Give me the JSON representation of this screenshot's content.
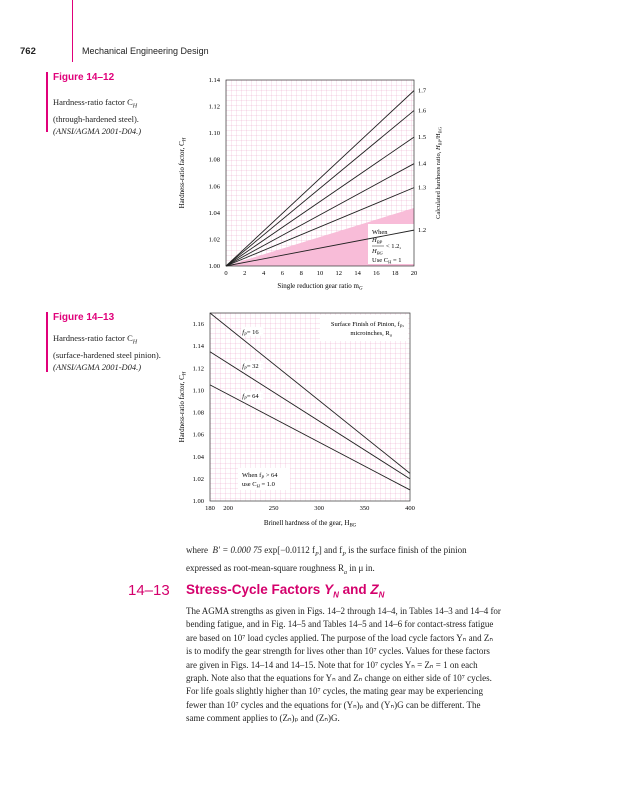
{
  "header": {
    "page_number": "762",
    "running_title": "Mechanical Engineering Design"
  },
  "figure12": {
    "label": "Figure 14–12",
    "caption": [
      "Hardness-ratio factor C",
      "(through-hardened steel).",
      "(ANSI/AGMA 2001-D04.)"
    ],
    "caption_sub": "H",
    "inset": {
      "line1": "When",
      "line2": "< 1.2,",
      "line3": "Use C",
      "line3_end": " = 1"
    },
    "right_label": "Calculated hardness ratio,"
  },
  "figure13": {
    "label": "Figure 14–13",
    "caption": [
      "Hardness-ratio factor C",
      "(surface-hardened steel pinion).",
      "(ANSI/AGMA 2001-D04.)"
    ],
    "caption_sub": "H",
    "legend_title": "Surface Finish of Pinion, f",
    "legend_title2": "microinches, R",
    "note1": "When f",
    "note1_end": " > 64",
    "note2": "use C",
    "note2_end": " = 1.0"
  },
  "chart_data": [
    {
      "type": "line",
      "x": [
        0,
        20
      ],
      "xlim": [
        0,
        20
      ],
      "ylim": [
        1.0,
        1.14
      ],
      "xticks": [
        "0",
        "2",
        "4",
        "6",
        "8",
        "10",
        "12",
        "14",
        "16",
        "18",
        "20"
      ],
      "yticks": [
        "1.00",
        "1.02",
        "1.04",
        "1.06",
        "1.08",
        "1.10",
        "1.12",
        "1.14"
      ],
      "xlabel": "Single reduction gear ratio m",
      "ylabel": "Hardness-ratio factor, C",
      "series": [
        {
          "name": "1.2",
          "values": [
            1.0,
            1.027
          ]
        },
        {
          "name": "1.3",
          "values": [
            1.0,
            1.059
          ]
        },
        {
          "name": "1.4",
          "values": [
            1.0,
            1.077
          ]
        },
        {
          "name": "1.5",
          "values": [
            1.0,
            1.097
          ]
        },
        {
          "name": "1.6",
          "values": [
            1.0,
            1.117
          ]
        },
        {
          "name": "1.7",
          "values": [
            1.0,
            1.132
          ]
        }
      ]
    },
    {
      "type": "line",
      "xlim": [
        180,
        400
      ],
      "ylim": [
        1.0,
        1.17
      ],
      "xticks": [
        "180",
        "200",
        "250",
        "300",
        "350",
        "400"
      ],
      "yticks": [
        "1.00",
        "1.02",
        "1.04",
        "1.06",
        "1.08",
        "1.10",
        "1.12",
        "1.14",
        "1.16"
      ],
      "xlabel": "Brinell hardness of the gear, H",
      "ylabel": "Hardness-ratio factor, C",
      "series": [
        {
          "name": "= 16",
          "x": [
            180,
            400
          ],
          "values": [
            1.17,
            1.025
          ]
        },
        {
          "name": "= 32",
          "x": [
            180,
            400
          ],
          "values": [
            1.135,
            1.02
          ]
        },
        {
          "name": "= 64",
          "x": [
            180,
            400
          ],
          "values": [
            1.105,
            1.01
          ]
        }
      ]
    }
  ],
  "text1": {
    "where": "where",
    "rest1": " exp[−0.0112 f",
    "rest2": "] and f",
    "rest3": " is the surface finish of the pinion",
    "line2": "expressed as root-mean-square roughness R",
    "line2_end": " in μ in.",
    "bprime": "B′ = 0.000 75"
  },
  "section": {
    "number": "14–13",
    "title": "Stress-Cycle Factors"
  },
  "paragraph": [
    "The AGMA strengths as given in Figs. 14–2 through 14–4, in Tables 14–3 and 14–4 for",
    "bending fatigue, and in Fig. 14–5 and Tables 14–5 and 14–6 for contact-stress fatigue",
    "are based on 10⁷ load cycles applied. The purpose of the load cycle factors Yₙ and Zₙ",
    "is to modify the gear strength for lives other than 10⁷ cycles. Values for these factors",
    "are given in Figs. 14–14 and 14–15. Note that for 10⁷ cycles Yₙ = Zₙ = 1 on each",
    "graph. Note also that the equations for Yₙ and Zₙ change on either side of 10⁷ cycles.",
    "For life goals slightly higher than 10⁷ cycles, the mating gear may be experiencing",
    "fewer than 10⁷ cycles and the equations for (Yₙ)ₚ and (Yₙ)G can be different. The",
    "same comment applies to (Zₙ)ₚ and (Zₙ)G."
  ]
}
